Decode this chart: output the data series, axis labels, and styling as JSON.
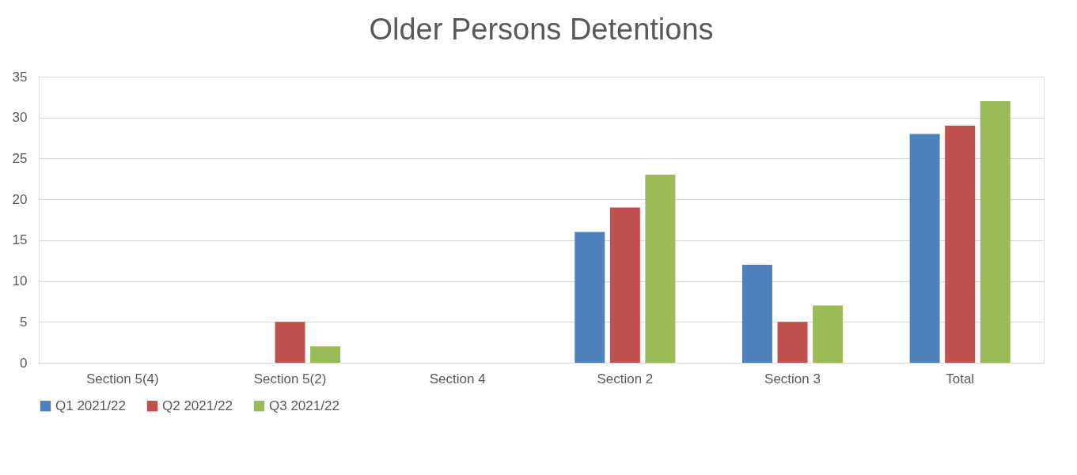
{
  "chart_data": {
    "type": "bar",
    "title": "Older Persons Detentions",
    "categories": [
      "Section 5(4)",
      "Section 5(2)",
      "Section 4",
      "Section 2",
      "Section 3",
      "Total"
    ],
    "series": [
      {
        "name": "Q1 2021/22",
        "color": "#4f81bd",
        "values": [
          0,
          0,
          0,
          16,
          12,
          28
        ]
      },
      {
        "name": "Q2 2021/22",
        "color": "#c0504d",
        "values": [
          0,
          5,
          0,
          19,
          5,
          29
        ]
      },
      {
        "name": "Q3 2021/22",
        "color": "#9bbb59",
        "values": [
          0,
          2,
          0,
          23,
          7,
          32
        ]
      }
    ],
    "ylim": [
      0,
      35
    ],
    "yticks": [
      0,
      5,
      10,
      15,
      20,
      25,
      30,
      35
    ],
    "grid": "y",
    "legend": "bottom"
  }
}
